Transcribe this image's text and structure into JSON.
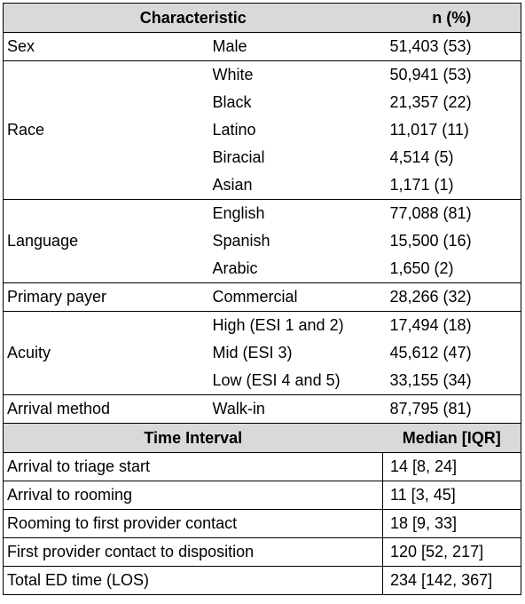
{
  "header": {
    "characteristic": "Characteristic",
    "n": "n (%)"
  },
  "groups": [
    {
      "label": "Sex",
      "rows": [
        [
          "Male",
          "51,403 (53)"
        ]
      ]
    },
    {
      "label": "Race",
      "rows": [
        [
          "White",
          "50,941 (53)"
        ],
        [
          "Black",
          "21,357 (22)"
        ],
        [
          "Latino",
          "11,017 (11)"
        ],
        [
          "Biracial",
          "4,514 (5)"
        ],
        [
          "Asian",
          "1,171 (1)"
        ]
      ]
    },
    {
      "label": "Language",
      "rows": [
        [
          "English",
          "77,088 (81)"
        ],
        [
          "Spanish",
          "15,500 (16)"
        ],
        [
          "Arabic",
          "1,650 (2)"
        ]
      ]
    },
    {
      "label": "Primary payer",
      "rows": [
        [
          "Commercial",
          "28,266 (32)"
        ]
      ]
    },
    {
      "label": "Acuity",
      "rows": [
        [
          "High (ESI 1 and 2)",
          "17,494 (18)"
        ],
        [
          "Mid (ESI 3)",
          "45,612 (47)"
        ],
        [
          "Low (ESI 4 and 5)",
          "33,155 (34)"
        ]
      ]
    },
    {
      "label": "Arrival method",
      "rows": [
        [
          "Walk-in",
          "87,795 (81)"
        ]
      ]
    }
  ],
  "interval_header": {
    "interval": "Time Interval",
    "median": "Median [IQR]"
  },
  "intervals": [
    [
      "Arrival to triage start",
      "14 [8, 24]"
    ],
    [
      "Arrival to rooming",
      "11 [3, 45]"
    ],
    [
      "Rooming to first provider contact",
      "18 [9, 33]"
    ],
    [
      "First provider contact to disposition",
      "120 [52, 217]"
    ],
    [
      "Total ED time (LOS)",
      "234 [142, 367]"
    ]
  ]
}
